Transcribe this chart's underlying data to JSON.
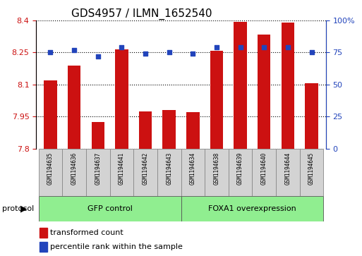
{
  "title": "GDS4957 / ILMN_1652540",
  "samples": [
    "GSM1194635",
    "GSM1194636",
    "GSM1194637",
    "GSM1194641",
    "GSM1194642",
    "GSM1194643",
    "GSM1194634",
    "GSM1194638",
    "GSM1194639",
    "GSM1194640",
    "GSM1194644",
    "GSM1194645"
  ],
  "transformed_count": [
    8.12,
    8.19,
    7.925,
    8.265,
    7.975,
    7.98,
    7.972,
    8.258,
    8.395,
    8.335,
    8.39,
    8.105
  ],
  "percentile_rank": [
    75,
    77,
    72,
    79,
    74,
    75,
    74,
    79,
    79,
    79,
    79,
    75
  ],
  "ylim_left": [
    7.8,
    8.4
  ],
  "ylim_right": [
    0,
    100
  ],
  "yticks_left": [
    7.8,
    7.95,
    8.1,
    8.25,
    8.4
  ],
  "yticks_right": [
    0,
    25,
    50,
    75,
    100
  ],
  "ytick_labels_left": [
    "7.8",
    "7.95",
    "8.1",
    "8.25",
    "8.4"
  ],
  "ytick_labels_right": [
    "0",
    "25",
    "50",
    "75",
    "100%"
  ],
  "bar_color": "#cc1111",
  "dot_color": "#2244bb",
  "group1_label": "GFP control",
  "group2_label": "FOXA1 overexpression",
  "group1_count": 6,
  "group2_count": 6,
  "protocol_label": "protocol",
  "legend_bar_label": "transformed count",
  "legend_dot_label": "percentile rank within the sample",
  "group_bg": "#90EE90",
  "xticklabel_bg": "#d3d3d3",
  "title_fontsize": 11,
  "tick_fontsize": 8,
  "label_fontsize": 7,
  "bar_width": 0.55
}
